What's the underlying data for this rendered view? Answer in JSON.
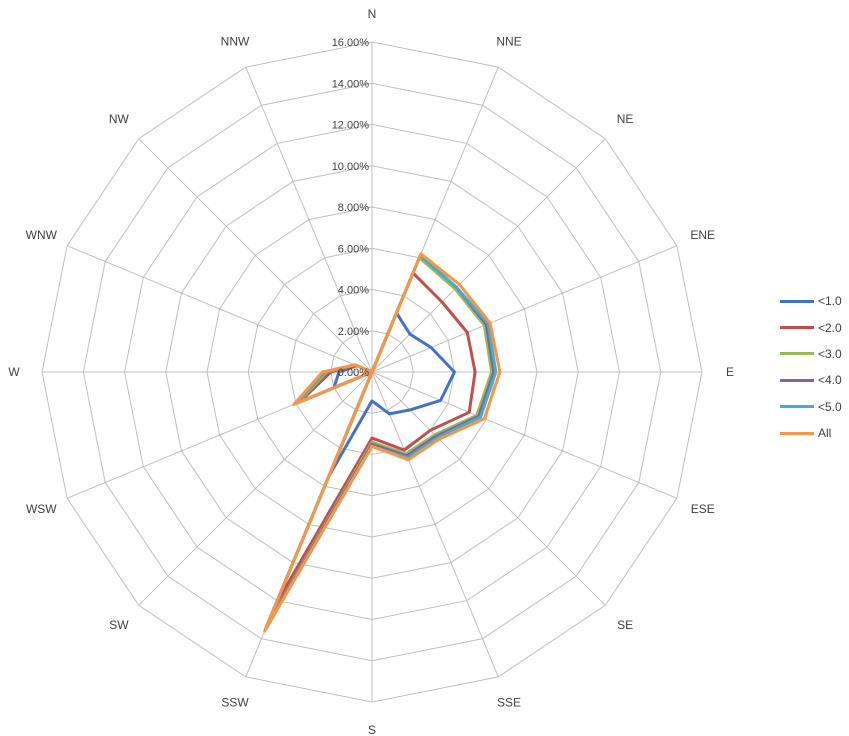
{
  "chart_data": {
    "type": "radar",
    "directions": [
      "N",
      "NNE",
      "NE",
      "ENE",
      "E",
      "ESE",
      "SE",
      "SSE",
      "S",
      "SSW",
      "SW",
      "WSW",
      "W",
      "WNW",
      "NW",
      "NNW"
    ],
    "r_ticks": [
      "0.00%",
      "2.00%",
      "4.00%",
      "6.00%",
      "8.00%",
      "10.00%",
      "12.00%",
      "14.00%",
      "16.00%"
    ],
    "rmax": 16,
    "grid": true,
    "legend_position": "right",
    "series": [
      {
        "name": "<1.0",
        "color": "#4472C4",
        "values": [
          0.0,
          3.1,
          2.6,
          3.1,
          4.0,
          3.6,
          2.6,
          2.2,
          1.4,
          5.5,
          0.0,
          2.0,
          1.6,
          0.8,
          0.0,
          0.0
        ]
      },
      {
        "name": "<2.0",
        "color": "#C0504D",
        "values": [
          0.0,
          5.2,
          4.8,
          5.0,
          5.0,
          5.1,
          4.0,
          4.1,
          3.2,
          12.2,
          0.0,
          3.8,
          2.0,
          0.8,
          0.0,
          0.0
        ]
      },
      {
        "name": "<3.0",
        "color": "#9BBB59",
        "values": [
          0.0,
          6.0,
          5.7,
          5.9,
          5.8,
          5.5,
          4.3,
          4.3,
          3.4,
          13.3,
          0.0,
          3.9,
          2.2,
          0.9,
          0.0,
          0.0
        ]
      },
      {
        "name": "<4.0",
        "color": "#8064A2",
        "values": [
          0.0,
          6.1,
          5.8,
          6.0,
          5.9,
          5.6,
          4.4,
          4.4,
          3.5,
          13.4,
          0.0,
          4.0,
          2.3,
          0.9,
          0.0,
          0.0
        ]
      },
      {
        "name": "<5.0",
        "color": "#4BACC6",
        "values": [
          0.0,
          6.1,
          5.8,
          6.1,
          6.0,
          5.7,
          4.5,
          4.5,
          3.6,
          13.5,
          0.0,
          4.0,
          2.3,
          0.9,
          0.0,
          0.0
        ]
      },
      {
        "name": "All",
        "color": "#F79646",
        "values": [
          0.0,
          6.2,
          6.0,
          6.2,
          6.2,
          5.9,
          4.6,
          4.6,
          3.6,
          13.6,
          0.0,
          4.1,
          2.4,
          0.9,
          0.0,
          0.0
        ]
      }
    ]
  }
}
